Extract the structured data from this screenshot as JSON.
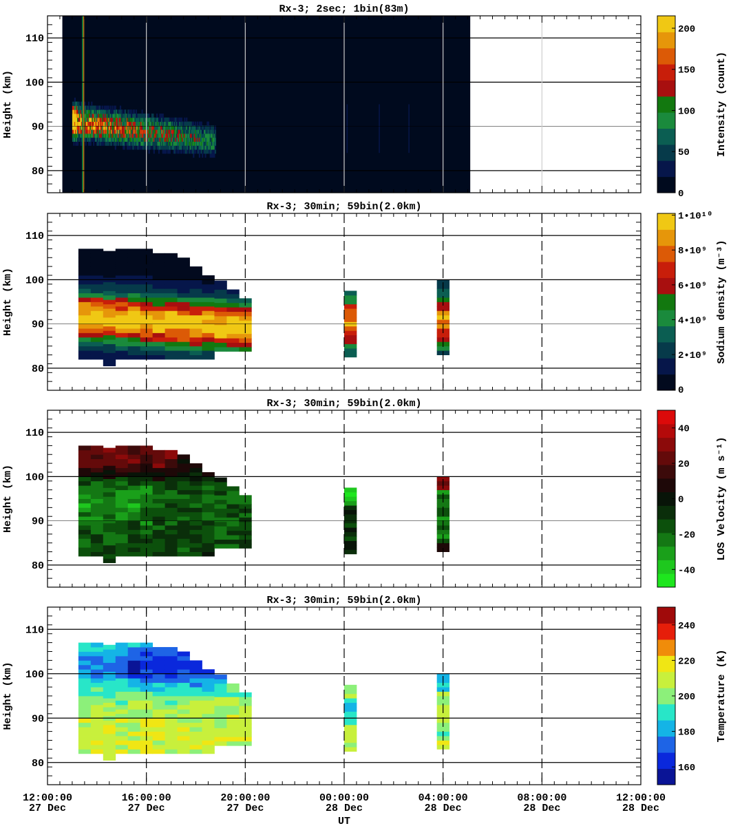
{
  "figure": {
    "xlabel": "UT"
  },
  "x_ticks": [
    {
      "time": "12:00:00",
      "date": "27 Dec"
    },
    {
      "time": "16:00:00",
      "date": "27 Dec"
    },
    {
      "time": "20:00:00",
      "date": "27 Dec"
    },
    {
      "time": "00:00:00",
      "date": "28 Dec"
    },
    {
      "time": "04:00:00",
      "date": "28 Dec"
    },
    {
      "time": "08:00:00",
      "date": "28 Dec"
    },
    {
      "time": "12:00:00",
      "date": "28 Dec"
    }
  ],
  "chart_data": [
    {
      "type": "heatmap",
      "title": "Rx-3;  2sec; 1bin(83m)",
      "xlabel": "UT",
      "ylabel": "Height (km)",
      "xlim_hours_since_12UT_27Dec": [
        0,
        24
      ],
      "ylim": [
        75,
        115
      ],
      "yticks": [
        80,
        90,
        100,
        110
      ],
      "colorbar": {
        "label": "Intensity (count)",
        "range": [
          0,
          200
        ],
        "ticks": [
          "0",
          "50",
          "100",
          "150",
          "200"
        ],
        "colors": [
          "#000a1e",
          "#06164a",
          "#063a4a",
          "#0b5e52",
          "#1a8a3c",
          "#12780f",
          "#a80f0f",
          "#c81e0a",
          "#dc5a06",
          "#e6960a",
          "#f0c814"
        ]
      },
      "data_coverage_hours": [
        0.6,
        17.1
      ],
      "layer_peak_height_km": 90,
      "layer_height_range_km": [
        83,
        97
      ]
    },
    {
      "type": "heatmap",
      "title": "Rx-3; 30min; 59bin(2.0km)",
      "xlabel": "UT",
      "ylabel": "Height (km)",
      "ylim": [
        75,
        115
      ],
      "yticks": [
        80,
        90,
        100,
        110
      ],
      "colorbar": {
        "label": "Sodium density (m⁻³)",
        "range": [
          0,
          10000000000
        ],
        "ticks": [
          "0",
          "2•10⁹",
          "4•10⁹",
          "6•10⁹",
          "8•10⁹",
          "1•10¹⁰"
        ],
        "colors": [
          "#020a1e",
          "#06164a",
          "#063a4a",
          "#0b5e52",
          "#1a8a3c",
          "#12780f",
          "#a80f0f",
          "#c81e0a",
          "#dc5a06",
          "#e6960a",
          "#f0c814"
        ]
      },
      "value_range": [
        0,
        10000000000
      ],
      "time_blocks_hours": [
        [
          1.25,
          8.0
        ],
        [
          12.0,
          12.5
        ],
        [
          15.75,
          16.25
        ]
      ]
    },
    {
      "type": "heatmap",
      "title": "Rx-3; 30min; 59bin(2.0km)",
      "xlabel": "UT",
      "ylabel": "Height (km)",
      "ylim": [
        75,
        115
      ],
      "yticks": [
        80,
        90,
        100,
        110
      ],
      "colorbar": {
        "label": "LOS Velocity (m s⁻¹)",
        "range": [
          -50,
          50
        ],
        "ticks": [
          "-40",
          "-20",
          "0",
          "20",
          "40"
        ],
        "colors": [
          "#1ee61e",
          "#1ec81e",
          "#1aa01a",
          "#147814",
          "#0c500c",
          "#0a2e0a",
          "#081408",
          "#1e0808",
          "#3c0a0a",
          "#640a0a",
          "#8c0a0a",
          "#b40a0a",
          "#dc0a0a"
        ]
      },
      "value_range": [
        -50,
        50
      ],
      "time_blocks_hours": [
        [
          1.25,
          8.0
        ],
        [
          12.0,
          12.5
        ],
        [
          15.75,
          16.25
        ]
      ]
    },
    {
      "type": "heatmap",
      "title": "Rx-3; 30min; 59bin(2.0km)",
      "xlabel": "UT",
      "ylabel": "Height (km)",
      "ylim": [
        75,
        115
      ],
      "yticks": [
        80,
        90,
        100,
        110
      ],
      "colorbar": {
        "label": "Temperature (K)",
        "range": [
          150,
          250
        ],
        "ticks": [
          "160",
          "180",
          "200",
          "220",
          "240"
        ],
        "colors": [
          "#0a1496",
          "#0a28dc",
          "#1e64e6",
          "#14b4e6",
          "#28e6c8",
          "#8cf07a",
          "#c8f03c",
          "#f0e614",
          "#f08c0a",
          "#e61e0a",
          "#a00a0a"
        ]
      },
      "value_range": [
        150,
        250
      ],
      "time_blocks_hours": [
        [
          1.25,
          8.0
        ],
        [
          12.0,
          12.5
        ],
        [
          15.75,
          16.25
        ]
      ]
    }
  ]
}
